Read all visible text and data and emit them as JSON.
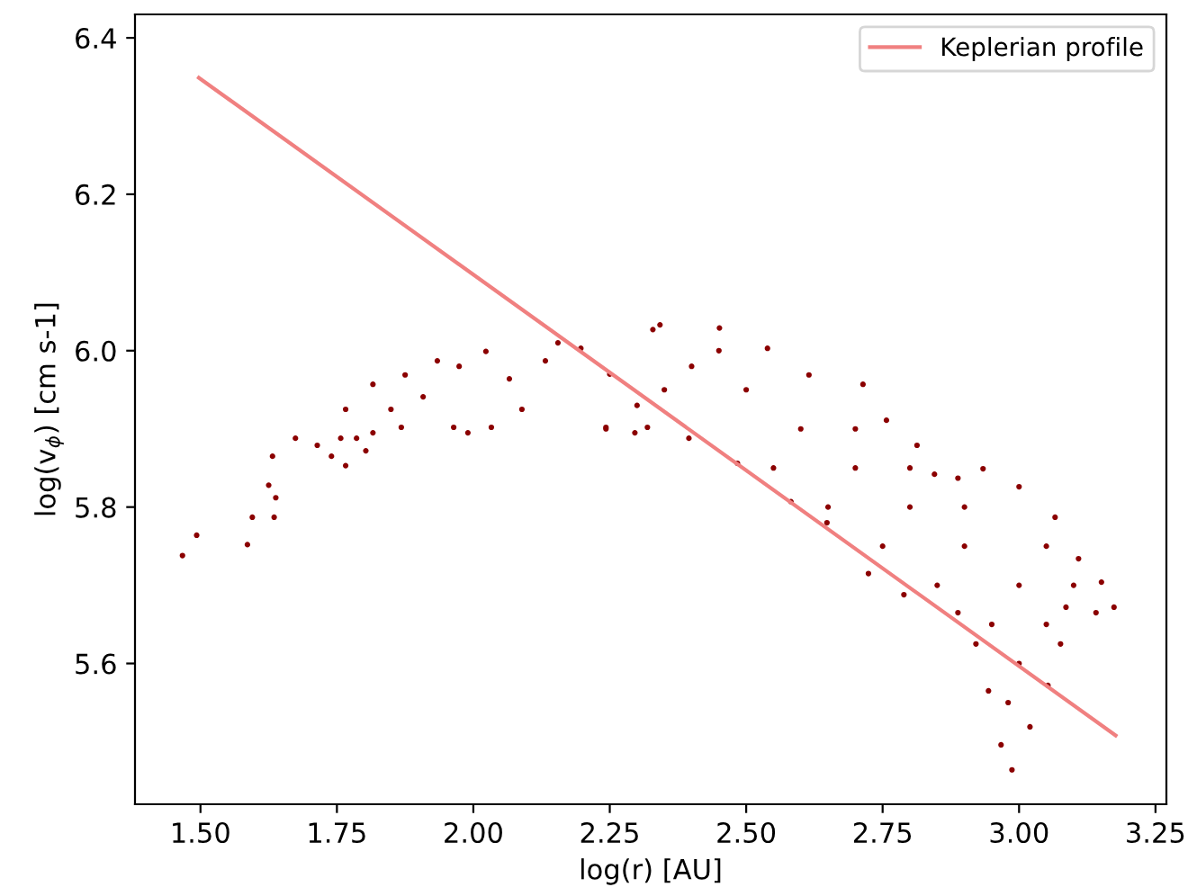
{
  "chart_data": {
    "type": "scatter",
    "xlabel": "log(r) [AU]",
    "ylabel": "log(v$_{ϕ}$) [cm s-1]",
    "xlim": [
      1.38,
      3.27
    ],
    "ylim": [
      5.42,
      6.43
    ],
    "xticks": [
      {
        "value": 1.5,
        "label": "1.50"
      },
      1.75,
      {
        "value": 2.0,
        "label": "2.00"
      },
      2.25,
      {
        "value": 2.5,
        "label": "2.50"
      },
      2.75,
      {
        "value": 3.0,
        "label": "3.00"
      },
      3.25
    ],
    "yticks": [
      5.6,
      5.8,
      {
        "value": 6.0,
        "label": "6.0"
      },
      6.2,
      6.4
    ],
    "grid": false,
    "legend": "top right",
    "marker": "circle",
    "series": [
      {
        "color": "#8b0000",
        "x": [
          1.467,
          1.493,
          1.586,
          1.595,
          1.635,
          1.638,
          1.625,
          1.632,
          1.674,
          1.714,
          1.74,
          1.766,
          1.757,
          1.786,
          1.803,
          1.766,
          1.816,
          1.816,
          1.849,
          1.868,
          1.875,
          1.908,
          1.934,
          1.964,
          1.99,
          1.974,
          2.023,
          2.033,
          2.066,
          2.089,
          2.132,
          2.197,
          2.243,
          2.296,
          2.329,
          2.155,
          2.342,
          2.451,
          2.539,
          2.615,
          2.714,
          2.757,
          2.813,
          2.845,
          2.888,
          2.934,
          3.0,
          3.066,
          3.109,
          3.151,
          3.174,
          3.141,
          3.086,
          3.076,
          3.053,
          3.02,
          2.987,
          2.967,
          2.944,
          2.921,
          2.888,
          2.789,
          2.724,
          2.648,
          2.582,
          2.484,
          2.395,
          2.319,
          2.243,
          2.4,
          2.5,
          2.6,
          2.7,
          2.8,
          2.9,
          3.0,
          2.95,
          3.05,
          3.1,
          2.35,
          2.55,
          2.65,
          2.75,
          2.85,
          3.0,
          2.98,
          2.45,
          2.25,
          2.3,
          2.7,
          2.8,
          2.9,
          3.05
        ],
        "values": [
          5.738,
          5.764,
          5.752,
          5.787,
          5.787,
          5.812,
          5.828,
          5.865,
          5.888,
          5.879,
          5.865,
          5.853,
          5.888,
          5.888,
          5.872,
          5.925,
          5.957,
          5.895,
          5.925,
          5.902,
          5.969,
          5.941,
          5.987,
          5.902,
          5.895,
          5.98,
          5.999,
          5.902,
          5.964,
          5.925,
          5.987,
          6.003,
          5.902,
          5.895,
          6.027,
          6.01,
          6.033,
          6.029,
          6.003,
          5.969,
          5.957,
          5.911,
          5.879,
          5.842,
          5.837,
          5.849,
          5.826,
          5.787,
          5.734,
          5.704,
          5.672,
          5.665,
          5.672,
          5.625,
          5.572,
          5.519,
          5.464,
          5.496,
          5.565,
          5.625,
          5.665,
          5.688,
          5.715,
          5.78,
          5.807,
          5.856,
          5.888,
          5.902,
          5.9,
          5.98,
          5.95,
          5.9,
          5.85,
          5.8,
          5.75,
          5.7,
          5.65,
          5.75,
          5.7,
          5.95,
          5.85,
          5.8,
          5.75,
          5.7,
          5.6,
          5.55,
          6.0,
          5.97,
          5.93,
          5.9,
          5.85,
          5.8,
          5.65
        ]
      },
      {
        "type": "line",
        "name": "Keplerian profile",
        "color": "#f08080",
        "marker": "none",
        "line_style": "solid",
        "x": [
          1.497,
          3.177
        ],
        "values": [
          6.349,
          5.508
        ]
      }
    ]
  }
}
